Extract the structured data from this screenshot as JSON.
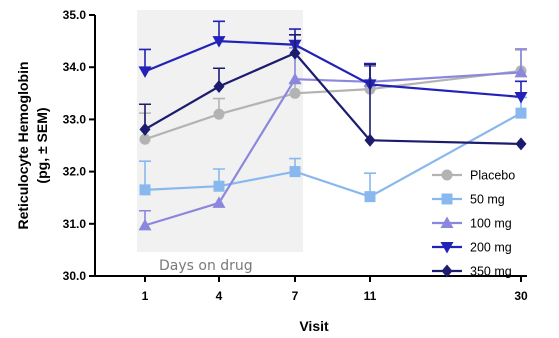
{
  "chart_data": {
    "type": "line",
    "xlabel": "Visit",
    "ylabel_line1": "Reticulocyte Hemoglobin",
    "ylabel_line2": "(pg, ± SEM)",
    "categories": [
      "1",
      "4",
      "7",
      "11",
      "30"
    ],
    "ylim": [
      30.0,
      35.0
    ],
    "yticks": [
      "30.0",
      "31.0",
      "32.0",
      "33.0",
      "34.0",
      "35.0"
    ],
    "ytick_values": [
      30,
      31,
      32,
      33,
      34,
      35
    ],
    "shaded_region": {
      "label": "Days on drug",
      "from": "1",
      "to": "7"
    },
    "legend_position": "right",
    "series": [
      {
        "name": "Placebo",
        "marker": "circle",
        "color": "#b3b3b3",
        "values": [
          32.62,
          33.1,
          33.5,
          33.58,
          33.93
        ],
        "sem": [
          0.5,
          0.3,
          0.2,
          0.15,
          0.4
        ]
      },
      {
        "name": "50 mg",
        "marker": "square",
        "color": "#88b8ee",
        "values": [
          31.65,
          31.72,
          32.0,
          31.52,
          33.12
        ],
        "sem": [
          0.55,
          0.33,
          0.25,
          0.45,
          0.3
        ]
      },
      {
        "name": "100 mg",
        "marker": "triangle-up",
        "color": "#8a87dc",
        "values": [
          30.97,
          31.4,
          33.77,
          33.72,
          33.9
        ],
        "sem": [
          0.28,
          0.0,
          0.6,
          0.3,
          0.45
        ]
      },
      {
        "name": "200 mg",
        "marker": "triangle-down",
        "color": "#2222b8",
        "values": [
          33.92,
          34.5,
          34.43,
          33.67,
          33.43
        ],
        "sem": [
          0.42,
          0.38,
          0.3,
          0.4,
          0.3
        ]
      },
      {
        "name": "350 mg",
        "marker": "diamond",
        "color": "#1c1c6e",
        "values": [
          32.81,
          33.63,
          34.27,
          32.6,
          32.53
        ],
        "sem": [
          0.48,
          0.35,
          0.35,
          1.45,
          0.0
        ]
      }
    ]
  }
}
